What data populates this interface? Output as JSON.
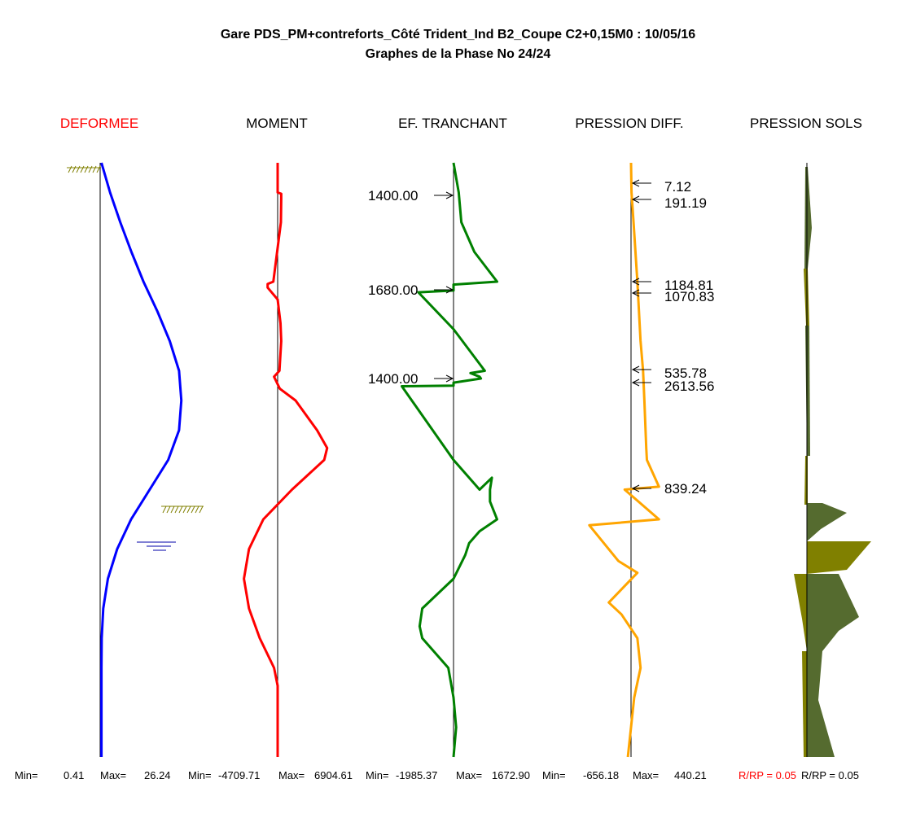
{
  "title": {
    "line1": "Gare PDS_PM+contreforts_Côté Trident_Ind B2_Coupe C2+0,15M0 : 10/05/16",
    "line2": "Graphes de la Phase No 24/24"
  },
  "colors": {
    "deformee": "#0000ff",
    "moment": "#ff0000",
    "tranchant": "#008000",
    "pression_diff": "#ffa500",
    "sol_dark": "#556b2f",
    "sol_olive": "#808000",
    "header_highlight": "#ff0000",
    "water": "#0000aa"
  },
  "chart_data": [
    {
      "type": "line",
      "title": "DEFORMEE",
      "color": "#0000ff",
      "depth": [
        0,
        5,
        10,
        15,
        20,
        25,
        30,
        35,
        40,
        45,
        50,
        55,
        60,
        65,
        70,
        75,
        80,
        85,
        90,
        95,
        100
      ],
      "values": [
        0.41,
        3.2,
        6.5,
        10.1,
        14,
        18.5,
        22.5,
        25.5,
        26.24,
        25.5,
        22,
        16,
        10,
        5.5,
        2.5,
        1,
        0.5,
        0.41,
        0.41,
        0.41,
        0.41
      ],
      "min_label": "Min=",
      "min_value": "0.41",
      "max_label": "Max=",
      "max_value": "26.24"
    },
    {
      "type": "line",
      "title": "MOMENT",
      "color": "#ff0000",
      "depth": [
        0,
        5,
        5.2,
        6,
        10,
        20,
        20.4,
        21,
        23,
        27,
        30,
        35,
        36,
        37,
        38,
        40,
        45,
        48,
        50,
        55,
        60,
        65,
        70,
        75,
        80,
        85,
        88,
        90,
        93,
        96,
        100
      ],
      "values": [
        0,
        0,
        500,
        500,
        450,
        -600,
        -1400,
        -1400,
        0,
        400,
        500,
        250,
        -500,
        -100,
        300,
        2500,
        5500,
        6904.61,
        6500,
        2000,
        -2000,
        -4000,
        -4709.71,
        -4000,
        -2500,
        -500,
        0,
        0,
        0,
        0,
        0
      ],
      "min_label": "Min=",
      "min_value": "-4709.71",
      "max_label": "Max=",
      "max_value": "6904.61"
    },
    {
      "type": "line",
      "title": "EF. TRANCHANT",
      "color": "#008000",
      "depth": [
        0,
        5,
        10,
        15,
        20,
        20.5,
        21.5,
        21.8,
        28,
        35,
        35.4,
        36,
        36.3,
        37,
        37.5,
        37.6,
        50,
        55,
        53,
        55,
        57,
        60,
        62,
        64,
        66,
        70,
        75,
        78,
        80,
        85,
        90,
        95,
        100
      ],
      "values": [
        0,
        200,
        300,
        800,
        1672.9,
        0,
        0,
        -1350,
        0,
        1200,
        650,
        1000,
        1050,
        0,
        0,
        -1985.37,
        0,
        1000,
        1472.9,
        1400,
        1400,
        1672.9,
        1000,
        600,
        450,
        0,
        -1200,
        -1300,
        -1200,
        -200,
        0,
        100,
        0
      ],
      "annotations": [
        "1400.00",
        "1680.00",
        "1400.00"
      ],
      "min_label": "Min=",
      "min_value": "-1985.37",
      "max_label": "Max=",
      "max_value": "1672.90"
    },
    {
      "type": "line",
      "title": "PRESSION DIFF.",
      "color": "#ffa500",
      "depth": [
        0,
        5,
        10,
        20,
        30,
        35,
        40,
        48,
        50,
        54.5,
        55,
        60,
        61,
        67,
        69,
        74,
        76,
        80,
        85,
        90,
        95,
        100
      ],
      "values": [
        0,
        7.12,
        40,
        100,
        150,
        190,
        210,
        240,
        250,
        440.21,
        -100,
        440.21,
        -656.18,
        -200,
        100,
        -350,
        -150,
        100,
        150,
        50,
        0,
        -50
      ],
      "annotations": [
        "7.12",
        "191.19",
        "1184.81",
        "1070.83",
        "535.78",
        "2613.56",
        "839.24"
      ],
      "min_label": "Min=",
      "min_value": "-656.18",
      "max_label": "Max=",
      "max_value": "440.21"
    },
    {
      "type": "area",
      "title": "PRESSION SOLS",
      "series": [
        {
          "name": "",
          "color": "#556b2f"
        },
        {
          "name": "",
          "color": "#808000"
        }
      ],
      "footer_left": "R/RP = 0.05",
      "footer_right": "R/RP = 0.05"
    }
  ]
}
